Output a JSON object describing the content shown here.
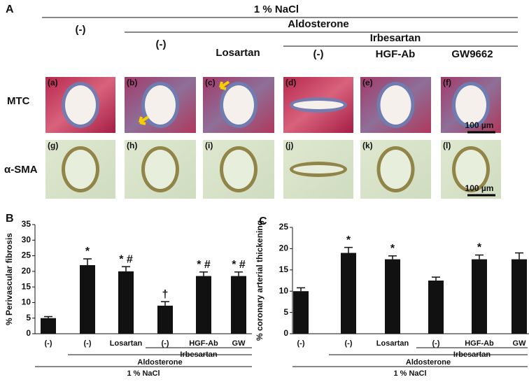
{
  "panel_a": {
    "label": "A",
    "salt": "1 % NaCl",
    "control": "(-)",
    "aldosterone": "Aldosterone",
    "aldo_control": "(-)",
    "losartan": "Losartan",
    "irbesartan": "Irbesartan",
    "irb_control": "(-)",
    "hgf_ab": "HGF-Ab",
    "gw9662": "GW9662",
    "row_labels": [
      "MTC",
      "α-SMA"
    ],
    "image_labels": [
      "(a)",
      "(b)",
      "(c)",
      "(d)",
      "(e)",
      "(f)",
      "(g)",
      "(h)",
      "(i)",
      "(j)",
      "(k)",
      "(l)"
    ],
    "scale_bars": [
      "100 µm",
      "100 µm"
    ]
  },
  "chart_data": [
    {
      "type": "bar",
      "panel": "B",
      "y_label": "% Perivascular fibrosis",
      "categories": [
        "(-)",
        "(-)",
        "Losartan",
        "(-)",
        "HGF-Ab",
        "GW"
      ],
      "values": [
        5,
        22,
        20,
        9,
        18.5,
        18.5
      ],
      "errors": [
        0.5,
        2,
        1.5,
        1.3,
        1.3,
        1.3
      ],
      "annotations": [
        null,
        "*",
        "* #",
        "†",
        "* #",
        "* #"
      ],
      "group_labels": [
        "Irbesartan",
        "Aldosterone",
        "1 % NaCl"
      ],
      "color": "#111111",
      "ylim": [
        0,
        35
      ],
      "yticks": [
        0,
        5,
        10,
        15,
        20,
        25,
        30,
        35
      ]
    },
    {
      "type": "bar",
      "panel": "C",
      "y_label": "% coronary arterial thickening",
      "categories": [
        "(-)",
        "(-)",
        "Losartan",
        "(-)",
        "HGF-Ab",
        "GW"
      ],
      "values": [
        10,
        19,
        17.5,
        12.5,
        17.5,
        17.5
      ],
      "errors": [
        0.8,
        1.3,
        0.8,
        0.8,
        1,
        1.5
      ],
      "annotations": [
        null,
        "*",
        "*",
        null,
        "*",
        null
      ],
      "group_labels": [
        "Irbesartan",
        "Aldosterone",
        "1 % NaCl"
      ],
      "color": "#111111",
      "ylim": [
        0,
        25
      ],
      "yticks": [
        0,
        5,
        10,
        15,
        20,
        25
      ]
    }
  ]
}
